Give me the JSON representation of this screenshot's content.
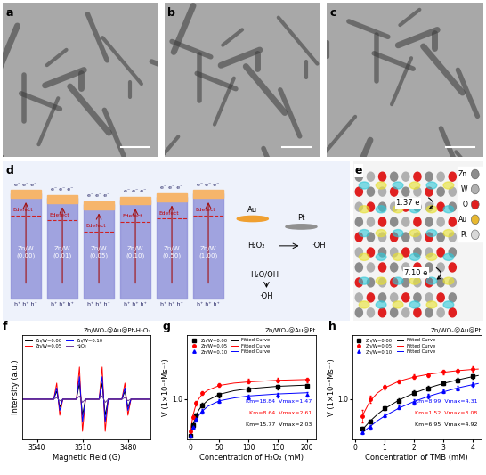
{
  "images": [
    {
      "label": "a"
    },
    {
      "label": "b"
    },
    {
      "label": "c"
    }
  ],
  "diagram_d": {
    "label": "d",
    "bands": [
      "Zn/W\n(0.00)",
      "Zn/W\n(0.01)",
      "Zn/W\n(0.05)",
      "Zn/W\n(0.10)",
      "Zn/W\n(0.50)",
      "Zn/W\n(1.00)"
    ],
    "electrons": "e⁻ e⁻ e⁻",
    "holes": "h⁺ h⁺ h⁺",
    "defect": "Edefect",
    "metals": [
      "Au",
      "Pt"
    ],
    "reactions": [
      "H₂O₂",
      "·OH",
      "H₂O/OH⁻",
      "·OH"
    ]
  },
  "structure_e": {
    "label": "e",
    "atoms": [
      {
        "name": "Zn",
        "color": "#8c8c8c"
      },
      {
        "name": "W",
        "color": "#b0b0b0"
      },
      {
        "name": "O",
        "color": "#e02020"
      },
      {
        "name": "Au",
        "color": "#e8b830"
      },
      {
        "name": "Pt",
        "color": "#d8d8d8"
      }
    ],
    "charges": [
      "1.37 e",
      "7.10 e"
    ]
  },
  "chart_data": [
    {
      "label": "f",
      "type": "line",
      "title": "Zn/WOₓ@Au@Pt-H₂O₂",
      "x_label": "Magnetic Field (G)",
      "y_label": "Intensity (a.u.)",
      "x": [
        3550,
        3529,
        3527,
        3525,
        3523,
        3514,
        3512,
        3510,
        3508,
        3499,
        3497,
        3495,
        3493,
        3484,
        3482,
        3480,
        3478,
        3465
      ],
      "series": [
        {
          "name": "Zn/W=0.00",
          "color": "#000000",
          "values": [
            0,
            0,
            0.5,
            -0.5,
            0,
            0,
            1,
            -1,
            0,
            0,
            1,
            -1,
            0,
            0,
            0.5,
            -0.5,
            0,
            0
          ]
        },
        {
          "name": "Zn/W=0.05",
          "color": "#ff0000",
          "values": [
            0,
            0,
            1,
            -1,
            0,
            0,
            2,
            -2,
            0,
            0,
            2,
            -2,
            0,
            0,
            1,
            -1,
            0,
            0
          ]
        },
        {
          "name": "Zn/W=0.10",
          "color": "#0000ff",
          "values": [
            0,
            0,
            0.7,
            -0.7,
            0,
            0,
            1.4,
            -1.4,
            0,
            0,
            1.4,
            -1.4,
            0,
            0,
            0.7,
            -0.7,
            0,
            0
          ]
        },
        {
          "name": "H₂O₂",
          "color": "#6a3d9a",
          "values": [
            0,
            0,
            0.1,
            -0.1,
            0,
            0,
            0.2,
            -0.2,
            0,
            0,
            0.2,
            -0.2,
            0,
            0,
            0.1,
            -0.1,
            0,
            0
          ]
        }
      ],
      "xlim": [
        3550,
        3465
      ],
      "xticks": [
        3540,
        3510,
        3480
      ],
      "ylim": [
        -2.5,
        4.0
      ],
      "tick_labels": "x",
      "legend": "upper left"
    },
    {
      "label": "g",
      "type": "scatter",
      "title": "Zn/WOₓ@Au@Pt",
      "x_label": "Concentration of H₂O₂ (mM)",
      "y_label": "V (1×10⁻⁸Ms⁻¹)",
      "series": [
        {
          "name": "Zn/W=0.00",
          "type": "scatter",
          "color": "#000000",
          "marker": "square",
          "x": [
            1,
            5,
            10,
            20,
            50,
            100,
            150,
            200
          ],
          "values": [
            0.1,
            0.35,
            0.6,
            0.85,
            1.1,
            1.25,
            1.3,
            1.33
          ],
          "errors": [
            0.03,
            0.04,
            0.05,
            0.05,
            0.06,
            0.06,
            0.05,
            0.05
          ]
        },
        {
          "name": "Fitted Curve",
          "type": "line",
          "color": "#000000",
          "x": [
            0,
            2,
            5,
            10,
            15,
            20,
            30,
            50,
            75,
            100,
            150,
            200
          ],
          "values": [
            0,
            0.17,
            0.36,
            0.58,
            0.73,
            0.83,
            0.97,
            1.12,
            1.21,
            1.26,
            1.32,
            1.35
          ]
        },
        {
          "name": "Zn/W=0.05",
          "type": "scatter",
          "color": "#ff0000",
          "marker": "circle",
          "x": [
            1,
            5,
            10,
            20,
            50,
            100,
            150,
            200
          ],
          "values": [
            0.2,
            0.55,
            0.9,
            1.15,
            1.35,
            1.45,
            1.47,
            1.48
          ],
          "errors": [
            0.03,
            0.05,
            0.05,
            0.05,
            0.05,
            0.05,
            0.05,
            0.05
          ]
        },
        {
          "name": "Fitted Curve",
          "type": "line",
          "color": "#ff0000",
          "x": [
            0,
            2,
            5,
            10,
            15,
            20,
            30,
            50,
            75,
            100,
            150,
            200
          ],
          "values": [
            0,
            0.31,
            0.6,
            0.86,
            1.01,
            1.11,
            1.22,
            1.34,
            1.4,
            1.43,
            1.47,
            1.49
          ]
        },
        {
          "name": "Zn/W=0.10",
          "type": "scatter",
          "color": "#0000ff",
          "marker": "triangle",
          "x": [
            1,
            5,
            10,
            20,
            50,
            100,
            150,
            200
          ],
          "values": [
            0.08,
            0.3,
            0.5,
            0.7,
            0.95,
            1.05,
            1.1,
            1.12
          ],
          "errors": [
            0.03,
            0.04,
            0.05,
            0.05,
            0.05,
            0.06,
            0.05,
            0.05
          ]
        },
        {
          "name": "Fitted Curve",
          "type": "line",
          "color": "#0000ff",
          "x": [
            0,
            2,
            5,
            10,
            15,
            20,
            30,
            50,
            75,
            100,
            150,
            200
          ],
          "values": [
            0,
            0.14,
            0.3,
            0.48,
            0.6,
            0.69,
            0.82,
            0.96,
            1.03,
            1.08,
            1.13,
            1.16
          ]
        }
      ],
      "xlim": [
        -5,
        215
      ],
      "xticks": [
        0,
        50,
        100,
        150,
        200
      ],
      "ylim": [
        0,
        2.6
      ],
      "yticks": [
        {
          "value": 1.0,
          "label": "1.0"
        }
      ],
      "legend": "upper left",
      "annotations": [
        {
          "text": "Km=18.84  Vmax=1.47",
          "color": "#0000ff"
        },
        {
          "text": "Km=8.64  Vmax=2.61",
          "color": "#ff0000"
        },
        {
          "text": "Km=15.77  Vmax=2.03",
          "color": "#000000"
        }
      ]
    },
    {
      "label": "h",
      "type": "scatter",
      "title": "Zn/WOₓ@Au@Pt",
      "x_label": "Concentration of TMB (mM)",
      "y_label": "V (1×10⁻⁸Ms⁻¹)",
      "series": [
        {
          "name": "Zn/W=0.00",
          "type": "scatter",
          "color": "#000000",
          "marker": "square",
          "x": [
            0.25,
            0.5,
            1,
            1.5,
            2,
            2.5,
            3,
            3.5,
            4
          ],
          "values": [
            0.27,
            0.44,
            0.78,
            0.96,
            1.16,
            1.27,
            1.4,
            1.47,
            1.57
          ],
          "errors": [
            0.04,
            0.05,
            0.05,
            0.06,
            0.05,
            0.06,
            0.05,
            0.05,
            0.06
          ]
        },
        {
          "name": "Fitted Curve",
          "type": "line",
          "color": "#000000",
          "x": [
            0.25,
            0.5,
            0.75,
            1,
            1.5,
            2,
            2.5,
            3,
            3.5,
            4,
            4.2
          ],
          "values": [
            0.25,
            0.45,
            0.62,
            0.76,
            0.98,
            1.15,
            1.28,
            1.39,
            1.48,
            1.56,
            1.59
          ]
        },
        {
          "name": "Zn/W=0.05",
          "type": "scatter",
          "color": "#ff0000",
          "marker": "circle",
          "x": [
            0.25,
            0.5,
            1,
            1.5,
            2,
            2.5,
            3,
            3.5,
            4
          ],
          "values": [
            0.58,
            1.0,
            1.3,
            1.44,
            1.56,
            1.6,
            1.68,
            1.7,
            1.75
          ],
          "errors": [
            0.15,
            0.08,
            0.06,
            0.05,
            0.05,
            0.05,
            0.06,
            0.06,
            0.07
          ]
        },
        {
          "name": "Fitted Curve",
          "type": "line",
          "color": "#ff0000",
          "x": [
            0.25,
            0.5,
            0.75,
            1,
            1.5,
            2,
            2.5,
            3,
            3.5,
            4,
            4.2
          ],
          "values": [
            0.6,
            0.95,
            1.15,
            1.28,
            1.45,
            1.55,
            1.62,
            1.67,
            1.71,
            1.74,
            1.75
          ]
        },
        {
          "name": "Zn/W=0.10",
          "type": "scatter",
          "color": "#0000ff",
          "marker": "triangle",
          "x": [
            0.25,
            0.5,
            1,
            1.5,
            2,
            2.5,
            3,
            3.5,
            4
          ],
          "values": [
            0.18,
            0.3,
            0.6,
            0.8,
            0.93,
            1.08,
            1.2,
            1.27,
            1.37
          ],
          "errors": [
            0.04,
            0.05,
            0.05,
            0.05,
            0.06,
            0.05,
            0.05,
            0.06,
            0.06
          ]
        },
        {
          "name": "Fitted Curve",
          "type": "line",
          "color": "#0000ff",
          "x": [
            0.25,
            0.5,
            0.75,
            1,
            1.5,
            2,
            2.5,
            3,
            3.5,
            4,
            4.2
          ],
          "values": [
            0.17,
            0.32,
            0.46,
            0.58,
            0.78,
            0.94,
            1.07,
            1.18,
            1.28,
            1.36,
            1.39
          ]
        }
      ],
      "xlim": [
        -0.1,
        4.3
      ],
      "xticks": [
        0,
        1,
        2,
        3,
        4
      ],
      "ylim": [
        0,
        2.6
      ],
      "yticks": [
        {
          "value": 1.0,
          "label": "1.0"
        }
      ],
      "legend": "upper left",
      "annotations": [
        {
          "text": "Km=8.99  Vmax=4.31",
          "color": "#0000ff"
        },
        {
          "text": "Km=1.52  Vmax=3.08",
          "color": "#ff0000"
        },
        {
          "text": "Km=6.95  Vmax=4.92",
          "color": "#000000"
        }
      ]
    }
  ]
}
